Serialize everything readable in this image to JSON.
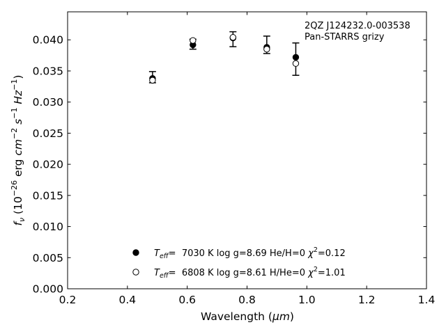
{
  "chart_data": {
    "type": "scatter",
    "title": "",
    "xlabel_main": "Wavelength (",
    "xlabel_unit": "μm",
    "xlabel_close": ")",
    "ylabel_symbol": "f",
    "ylabel_sub": "ν",
    "ylabel_text": "(10",
    "ylabel_exp1": "−26",
    "ylabel_erg": "erg",
    "ylabel_cm": "cm",
    "ylabel_exp2": "−2",
    "ylabel_s": "s",
    "ylabel_exp3": "−1",
    "ylabel_hz": "Hz",
    "ylabel_exp4": "−1",
    "ylabel_end": ")",
    "xlim": [
      0.2,
      1.4
    ],
    "ylim": [
      0.0,
      0.0445
    ],
    "xticks": [
      0.2,
      0.4,
      0.6,
      0.8,
      1.0,
      1.2,
      1.4
    ],
    "xtick_labels": [
      "0.2",
      "0.4",
      "0.6",
      "0.8",
      "1.0",
      "1.2",
      "1.4"
    ],
    "yticks": [
      0.0,
      0.005,
      0.01,
      0.015,
      0.02,
      0.025,
      0.03,
      0.035,
      0.04
    ],
    "ytick_labels": [
      "0.000",
      "0.005",
      "0.010",
      "0.015",
      "0.020",
      "0.025",
      "0.030",
      "0.035",
      "0.040"
    ],
    "grid": false,
    "annotation": {
      "object": "2QZ J124232.0-003538",
      "survey": "Pan-STARRS grizy"
    },
    "observed": {
      "x": [
        0.484,
        0.619,
        0.753,
        0.866,
        0.963
      ],
      "y": [
        0.034,
        0.0393,
        0.0401,
        0.0392,
        0.0369
      ],
      "yerr": [
        0.0009,
        0.0008,
        0.0012,
        0.0014,
        0.0026
      ]
    },
    "series": [
      {
        "marker": "filled",
        "x": [
          0.484,
          0.619,
          0.753,
          0.866,
          0.963
        ],
        "y": [
          0.0338,
          0.0392,
          0.0403,
          0.0388,
          0.0372
        ]
      },
      {
        "marker": "open",
        "x": [
          0.484,
          0.619,
          0.753,
          0.866,
          0.963
        ],
        "y": [
          0.0335,
          0.0399,
          0.0404,
          0.0385,
          0.0362
        ]
      }
    ],
    "legend": [
      {
        "marker": "filled",
        "teff_symbol": "T",
        "teff_sub": "eff",
        "temp": "=  7030 K",
        "logg": "log g=8.69",
        "comp": "He/H=0",
        "chi_symbol": "χ",
        "chi_exp": "2",
        "chi_val": "=0.12"
      },
      {
        "marker": "open",
        "teff_symbol": "T",
        "teff_sub": "eff",
        "temp": "=  6808 K",
        "logg": "log g=8.61",
        "comp": "H/He=0",
        "chi_symbol": "χ",
        "chi_exp": "2",
        "chi_val": "=1.01"
      }
    ],
    "legend_placement": "lower-center",
    "colors": {
      "marker": "#000000",
      "open_fill": "#ffffff"
    }
  }
}
